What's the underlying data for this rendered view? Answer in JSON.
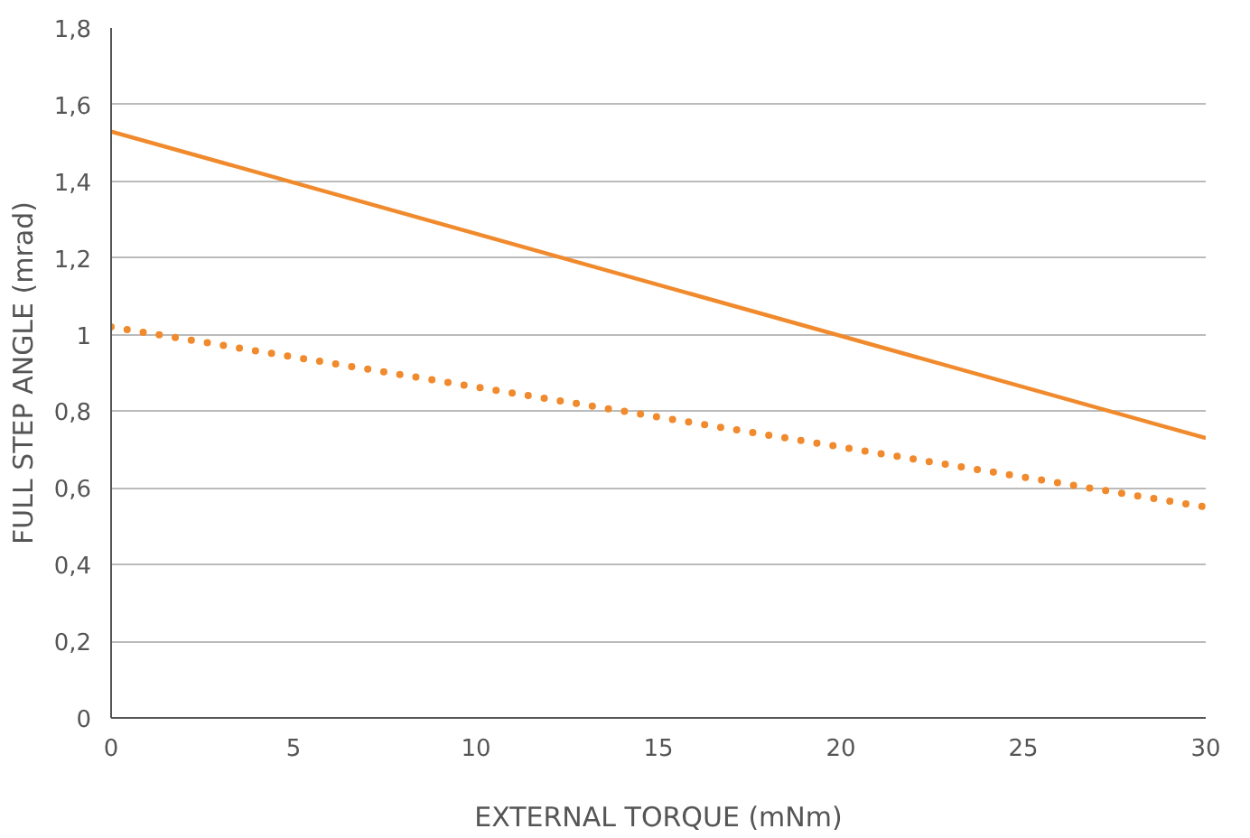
{
  "chart_data": {
    "type": "line",
    "xlabel": "EXTERNAL TORQUE (mNm)",
    "ylabel": "FULL STEP ANGLE (mrad)",
    "x": [
      0,
      30
    ],
    "series": [
      {
        "color": "#f08a2c",
        "values": [
          1.53,
          0.73
        ],
        "line_style": "solid"
      },
      {
        "color": "#f08a2c",
        "values": [
          1.02,
          0.55
        ],
        "line_style": "dotted"
      }
    ],
    "xlim": [
      0,
      30
    ],
    "xticks": [
      0,
      5,
      10,
      15,
      20,
      25,
      30
    ],
    "ylim": [
      0,
      1.8
    ],
    "yticks": [
      {
        "value": 0,
        "label": "0"
      },
      {
        "value": 0.2,
        "label": "0,2"
      },
      {
        "value": 0.4,
        "label": "0,4"
      },
      {
        "value": 0.6,
        "label": "0,6"
      },
      {
        "value": 0.8,
        "label": "0,8"
      },
      {
        "value": 1,
        "label": "1"
      },
      {
        "value": 1.2,
        "label": "1,2"
      },
      {
        "value": 1.4,
        "label": "1,4"
      },
      {
        "value": 1.6,
        "label": "1,6"
      },
      {
        "value": 1.8,
        "label": "1,8"
      }
    ],
    "grid": "y",
    "marker": "none"
  }
}
